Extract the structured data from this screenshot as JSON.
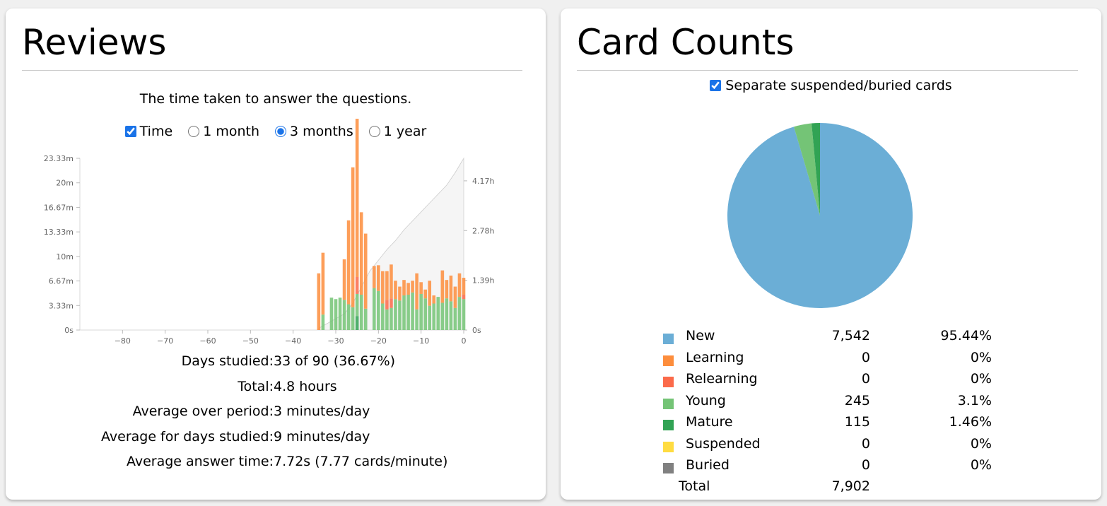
{
  "reviews": {
    "title": "Reviews",
    "subtitle": "The time taken to answer the questions.",
    "options": {
      "time": {
        "label": "Time",
        "checked": true
      },
      "ranges": [
        {
          "label": "1 month",
          "checked": false
        },
        {
          "label": "3 months",
          "checked": true
        },
        {
          "label": "1 year",
          "checked": false
        }
      ]
    },
    "stats": [
      {
        "label": "Days studied:",
        "value": "33 of 90 (36.67%)"
      },
      {
        "label": "Total:",
        "value": "4.8 hours"
      },
      {
        "label": "Average over period:",
        "value": "3 minutes/day"
      },
      {
        "label": "Average for days studied:",
        "value": "9 minutes/day"
      },
      {
        "label": "Average answer time:",
        "value": "7.72s (7.77 cards/minute)"
      }
    ]
  },
  "chart_data": {
    "type": "bar",
    "stacked": true,
    "x_ticks": [
      -80,
      -70,
      -60,
      -50,
      -40,
      -30,
      -20,
      -10,
      0
    ],
    "x_range": [
      -90,
      0
    ],
    "y_ticks": [
      "0s",
      "3.33m",
      "6.67m",
      "10m",
      "13.33m",
      "16.67m",
      "20m",
      "23.33m"
    ],
    "y_range": [
      0,
      23.33
    ],
    "y_unit": "minutes",
    "y2_ticks": [
      "0s",
      "1.39h",
      "2.78h",
      "4.17h"
    ],
    "y2_range": [
      0,
      4.8
    ],
    "y2_unit": "hours",
    "days": [
      -34,
      -33,
      -31,
      -30,
      -29,
      -28,
      -27,
      -26,
      -25,
      -24,
      -23,
      -21,
      -20,
      -19,
      -18,
      -17,
      -16,
      -15,
      -14,
      -13,
      -12,
      -11,
      -10,
      -9,
      -8,
      -7,
      -6,
      -5,
      -4,
      -3,
      -2,
      -1,
      0
    ],
    "series": [
      {
        "color": "#fd8d3c",
        "values": [
          7.7,
          8.4,
          0,
          0,
          0,
          5.5,
          11.4,
          19.0,
          21.5,
          11.2,
          10.2,
          3.0,
          3.5,
          4.4,
          3.9,
          4.6,
          2.5,
          1.9,
          2.1,
          1.6,
          1.6,
          4.9,
          1.6,
          1.2,
          3.4,
          1.1,
          0,
          4.4,
          2.5,
          3.5,
          2.9,
          3.2,
          2.3
        ]
      },
      {
        "color": "#fb6a4a",
        "values": [
          0,
          0,
          0,
          0,
          0,
          0,
          0,
          0,
          2.3,
          0,
          0,
          0,
          0,
          0,
          1.3,
          1.3,
          0,
          0,
          0,
          0,
          0,
          0,
          0,
          0,
          0,
          0,
          0,
          0,
          0,
          0,
          0,
          0,
          0.6
        ]
      },
      {
        "color": "#74c476",
        "values": [
          0,
          2.1,
          4.4,
          4.2,
          4.4,
          4.1,
          3.5,
          3.1,
          3.0,
          4.8,
          2.9,
          5.7,
          5.3,
          3.6,
          2.8,
          3.0,
          4.2,
          4.0,
          4.7,
          4.8,
          5.1,
          2.8,
          4.9,
          4.3,
          3.3,
          3.6,
          4.5,
          3.7,
          4.3,
          3.9,
          3.0,
          4.5,
          4.2
        ]
      },
      {
        "color": "#31a354",
        "values": [
          0,
          0,
          0,
          0,
          0,
          0,
          0,
          0,
          1.9,
          0,
          0,
          0,
          0,
          0,
          0,
          0,
          0,
          0,
          0,
          0,
          0,
          0,
          0,
          0,
          0,
          0,
          0,
          0,
          0,
          0,
          0,
          0,
          0
        ]
      }
    ],
    "cumulative_area": {
      "color": "#cccccc",
      "points": [
        [
          -34,
          0.05
        ],
        [
          -31,
          0.25
        ],
        [
          -28,
          0.45
        ],
        [
          -26,
          0.75
        ],
        [
          -24,
          1.2
        ],
        [
          -22,
          1.65
        ],
        [
          -20,
          1.95
        ],
        [
          -18,
          2.25
        ],
        [
          -16,
          2.5
        ],
        [
          -14,
          2.8
        ],
        [
          -12,
          3.05
        ],
        [
          -10,
          3.3
        ],
        [
          -8,
          3.55
        ],
        [
          -6,
          3.8
        ],
        [
          -4,
          4.05
        ],
        [
          -2,
          4.4
        ],
        [
          0,
          4.8
        ]
      ]
    }
  },
  "card_counts": {
    "title": "Card Counts",
    "separate_label": "Separate suspended/buried cards",
    "separate_checked": true,
    "pie": [
      {
        "label": "New",
        "count": 7542,
        "pct": 95.44,
        "color": "#6baed6"
      },
      {
        "label": "Young",
        "count": 245,
        "pct": 3.1,
        "color": "#74c476"
      },
      {
        "label": "Mature",
        "count": 115,
        "pct": 1.46,
        "color": "#31a354"
      }
    ],
    "legend": [
      {
        "name": "New",
        "count": "7,542",
        "pct": "95.44%",
        "color": "#6baed6"
      },
      {
        "name": "Learning",
        "count": "0",
        "pct": "0%",
        "color": "#fd8d3c"
      },
      {
        "name": "Relearning",
        "count": "0",
        "pct": "0%",
        "color": "#fb6a4a"
      },
      {
        "name": "Young",
        "count": "245",
        "pct": "3.1%",
        "color": "#74c476"
      },
      {
        "name": "Mature",
        "count": "115",
        "pct": "1.46%",
        "color": "#31a354"
      },
      {
        "name": "Suspended",
        "count": "0",
        "pct": "0%",
        "color": "#ffdc41"
      },
      {
        "name": "Buried",
        "count": "0",
        "pct": "0%",
        "color": "#808080"
      }
    ],
    "total_label": "Total",
    "total_count": "7,902"
  }
}
